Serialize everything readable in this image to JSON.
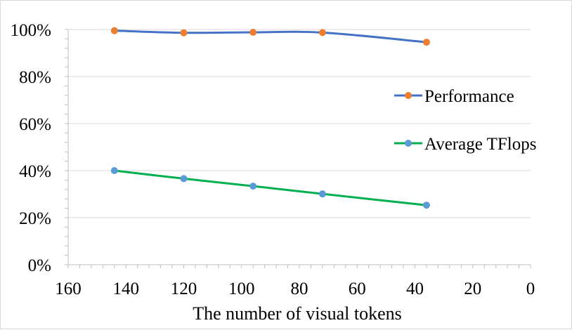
{
  "chart_data": {
    "type": "line",
    "xlabel": "The number of visual tokens",
    "ylabel": "",
    "xlim": [
      160,
      0
    ],
    "ylim": [
      0,
      100
    ],
    "x_ticks": [
      160,
      140,
      120,
      100,
      80,
      60,
      40,
      20,
      0
    ],
    "y_ticks": [
      0,
      20,
      40,
      60,
      80,
      100
    ],
    "y_tick_labels": [
      "0%",
      "20%",
      "40%",
      "60%",
      "80%",
      "100%"
    ],
    "grid": "horizontal",
    "legend_position": "right",
    "series": [
      {
        "name": "Performance",
        "x": [
          144,
          120,
          96,
          72,
          36
        ],
        "values": [
          99.5,
          98.6,
          98.8,
          98.7,
          94.6
        ],
        "line_color": "#4472c4",
        "marker_color": "#ed7d31"
      },
      {
        "name": "Average TFlops",
        "x": [
          144,
          120,
          96,
          72,
          36
        ],
        "values": [
          40.0,
          36.6,
          33.4,
          30.1,
          25.3
        ],
        "line_color": "#00b050",
        "marker_color": "#5b9bd5"
      }
    ]
  }
}
